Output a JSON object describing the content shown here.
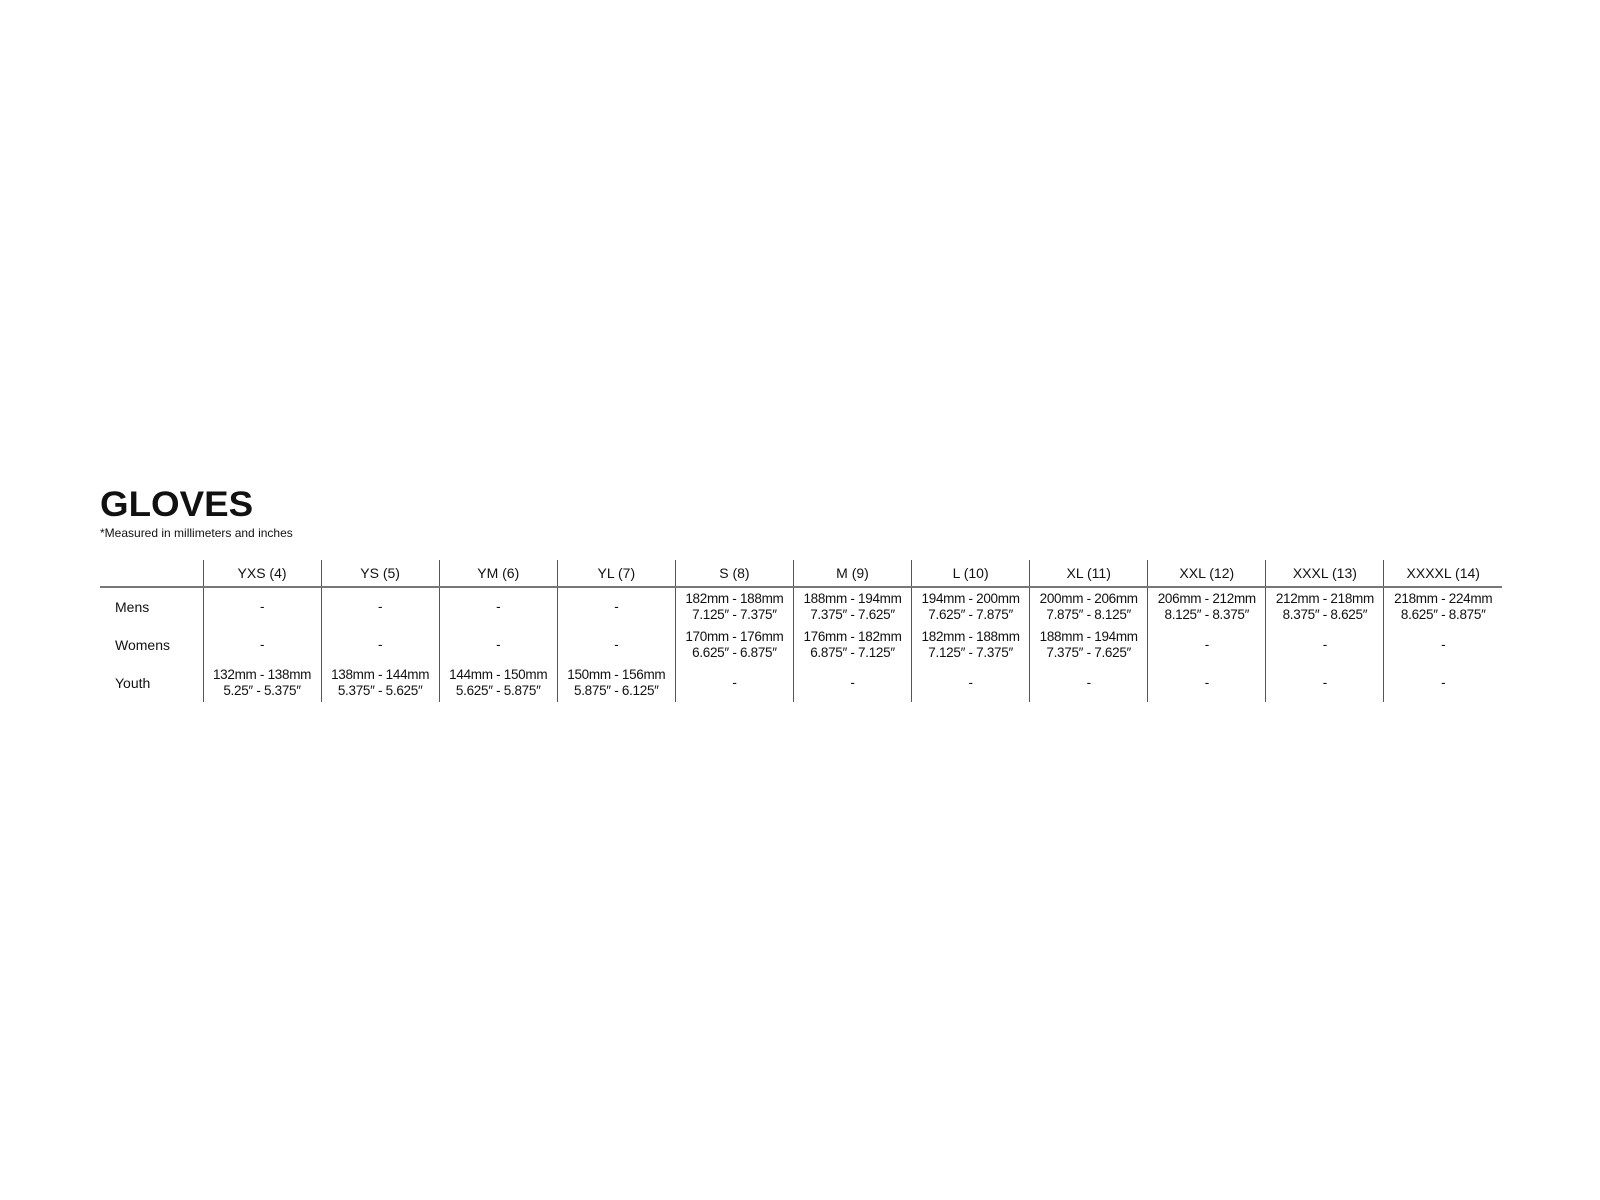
{
  "title": "GLOVES",
  "note": "*Measured in millimeters and inches",
  "table": {
    "columns": [
      "YXS (4)",
      "YS (5)",
      "YM (6)",
      "YL (7)",
      "S (8)",
      "M (9)",
      "L (10)",
      "XL (11)",
      "XXL (12)",
      "XXXL (13)",
      "XXXXL (14)"
    ],
    "rows": [
      {
        "label": "Mens",
        "cells": [
          {
            "mm": "-",
            "in": ""
          },
          {
            "mm": "-",
            "in": ""
          },
          {
            "mm": "-",
            "in": ""
          },
          {
            "mm": "-",
            "in": ""
          },
          {
            "mm": "182mm - 188mm",
            "in": "7.125″ - 7.375″"
          },
          {
            "mm": "188mm - 194mm",
            "in": "7.375″ - 7.625″"
          },
          {
            "mm": "194mm - 200mm",
            "in": "7.625″ - 7.875″"
          },
          {
            "mm": "200mm - 206mm",
            "in": "7.875″ - 8.125″"
          },
          {
            "mm": "206mm - 212mm",
            "in": "8.125″ - 8.375″"
          },
          {
            "mm": "212mm - 218mm",
            "in": "8.375″ - 8.625″"
          },
          {
            "mm": "218mm - 224mm",
            "in": "8.625″ - 8.875″"
          }
        ]
      },
      {
        "label": "Womens",
        "cells": [
          {
            "mm": "-",
            "in": ""
          },
          {
            "mm": "-",
            "in": ""
          },
          {
            "mm": "-",
            "in": ""
          },
          {
            "mm": "-",
            "in": ""
          },
          {
            "mm": "170mm - 176mm",
            "in": "6.625″ - 6.875″"
          },
          {
            "mm": "176mm - 182mm",
            "in": "6.875″ - 7.125″"
          },
          {
            "mm": "182mm - 188mm",
            "in": "7.125″ - 7.375″"
          },
          {
            "mm": "188mm - 194mm",
            "in": "7.375″ - 7.625″"
          },
          {
            "mm": "-",
            "in": ""
          },
          {
            "mm": "-",
            "in": ""
          },
          {
            "mm": "-",
            "in": ""
          }
        ]
      },
      {
        "label": "Youth",
        "cells": [
          {
            "mm": "132mm - 138mm",
            "in": "5.25″ - 5.375″"
          },
          {
            "mm": "138mm - 144mm",
            "in": "5.375″ - 5.625″"
          },
          {
            "mm": "144mm - 150mm",
            "in": "5.625″ - 5.875″"
          },
          {
            "mm": "150mm - 156mm",
            "in": "5.875″ - 6.125″"
          },
          {
            "mm": "-",
            "in": ""
          },
          {
            "mm": "-",
            "in": ""
          },
          {
            "mm": "-",
            "in": ""
          },
          {
            "mm": "-",
            "in": ""
          },
          {
            "mm": "-",
            "in": ""
          },
          {
            "mm": "-",
            "in": ""
          },
          {
            "mm": "-",
            "in": ""
          }
        ]
      }
    ]
  }
}
